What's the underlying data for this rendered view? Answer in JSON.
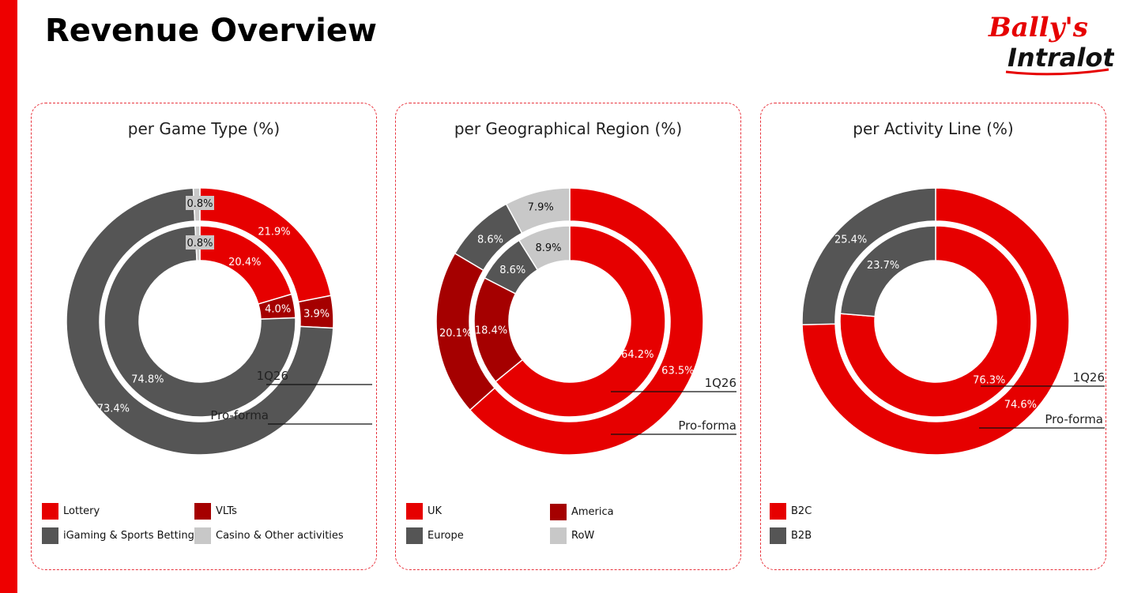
{
  "page": {
    "title": "Revenue Overview",
    "logo_line1": "Bally's",
    "logo_line2": "Intralot"
  },
  "colors": {
    "accent": "#ee0000",
    "red": "#e60000",
    "dark_red": "#a50000",
    "dark_gray": "#555555",
    "light_gray": "#c8c8c8"
  },
  "chart_data": [
    {
      "type": "pie",
      "title": "per Game Type (%)",
      "ring_labels": [
        "1Q26",
        "Pro-forma"
      ],
      "categories": [
        "Lottery",
        "VLTs",
        "iGaming & Sports Betting",
        "Casino & Other activities"
      ],
      "colors": [
        "#e60000",
        "#a50000",
        "#555555",
        "#c8c8c8"
      ],
      "series": [
        {
          "name": "1Q26",
          "ring": "inner",
          "values": [
            20.4,
            4.0,
            74.8,
            0.8
          ],
          "labels": [
            "20.4%",
            "4.0%",
            "74.8%",
            "0.8%"
          ]
        },
        {
          "name": "Pro-forma",
          "ring": "outer",
          "values": [
            21.9,
            3.9,
            73.4,
            0.8
          ],
          "labels": [
            "21.9%",
            "3.9%",
            "73.4%",
            "0.8%"
          ]
        }
      ]
    },
    {
      "type": "pie",
      "title": "per Geographical Region (%)",
      "ring_labels": [
        "1Q26",
        "Pro-forma"
      ],
      "categories": [
        "UK",
        "America",
        "Europe",
        "RoW"
      ],
      "colors": [
        "#e60000",
        "#a50000",
        "#555555",
        "#c8c8c8"
      ],
      "series": [
        {
          "name": "1Q26",
          "ring": "inner",
          "values": [
            64.2,
            18.4,
            8.6,
            8.9
          ],
          "labels": [
            "64.2%",
            "18.4%",
            "8.6%",
            "8.9%"
          ]
        },
        {
          "name": "Pro-forma",
          "ring": "outer",
          "values": [
            63.5,
            20.1,
            8.6,
            7.9
          ],
          "labels": [
            "63.5%",
            "20.1%",
            "8.6%",
            "7.9%"
          ]
        }
      ]
    },
    {
      "type": "pie",
      "title": "per Activity Line (%)",
      "ring_labels": [
        "1Q26",
        "Pro-forma"
      ],
      "categories": [
        "B2C",
        "B2B"
      ],
      "colors": [
        "#e60000",
        "#555555"
      ],
      "series": [
        {
          "name": "1Q26",
          "ring": "inner",
          "values": [
            76.3,
            23.7
          ],
          "labels": [
            "76.3%",
            "23.7%"
          ]
        },
        {
          "name": "Pro-forma",
          "ring": "outer",
          "values": [
            74.6,
            25.4
          ],
          "labels": [
            "74.6%",
            "25.4%"
          ]
        }
      ]
    }
  ]
}
